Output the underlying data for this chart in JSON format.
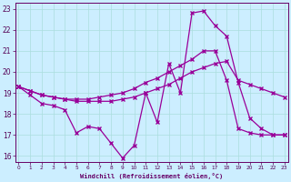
{
  "xlabel": "Windchill (Refroidissement éolien,°C)",
  "background_color": "#cceeff",
  "grid_color": "#aadddd",
  "line_color": "#990099",
  "x_ticks": [
    0,
    1,
    2,
    3,
    4,
    5,
    6,
    7,
    8,
    9,
    10,
    11,
    12,
    13,
    14,
    15,
    16,
    17,
    18,
    19,
    20,
    21,
    22,
    23
  ],
  "y_ticks": [
    16,
    17,
    18,
    19,
    20,
    21,
    22,
    23
  ],
  "x_min": -0.3,
  "x_max": 23.3,
  "y_min": 15.7,
  "y_max": 23.3,
  "s1": [
    19.3,
    18.9,
    18.5,
    18.4,
    18.2,
    17.1,
    17.4,
    17.3,
    16.6,
    15.9,
    16.5,
    19.0,
    17.6,
    20.4,
    19.0,
    22.8,
    22.9,
    22.2,
    21.7,
    19.5,
    17.8,
    17.3,
    17.0,
    17.0
  ],
  "s2": [
    19.3,
    19.1,
    18.9,
    18.8,
    18.7,
    18.7,
    18.7,
    18.8,
    18.9,
    19.0,
    19.2,
    19.5,
    19.7,
    20.0,
    20.3,
    20.6,
    21.0,
    21.0,
    19.6,
    17.3,
    17.1,
    17.0,
    17.0,
    17.0
  ],
  "s3": [
    19.3,
    19.1,
    18.9,
    18.8,
    18.7,
    18.6,
    18.6,
    18.6,
    18.6,
    18.7,
    18.8,
    19.0,
    19.2,
    19.4,
    19.7,
    20.0,
    20.2,
    20.4,
    20.5,
    19.6,
    19.4,
    19.2,
    19.0,
    18.8
  ]
}
